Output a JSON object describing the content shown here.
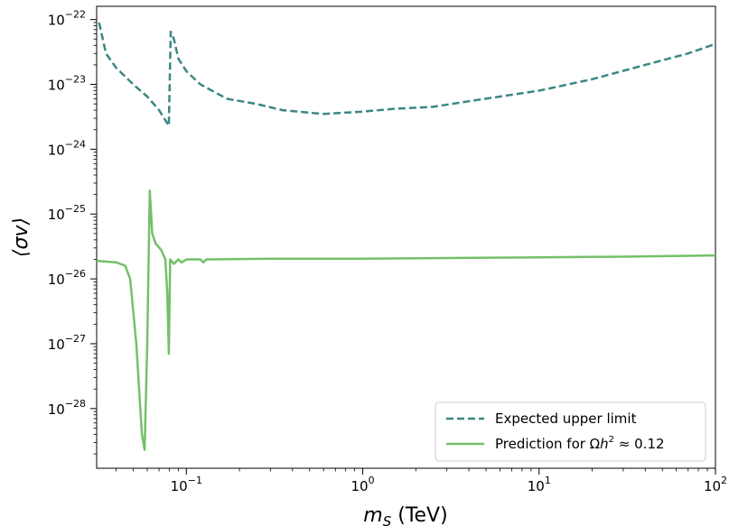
{
  "chart_data": {
    "type": "line",
    "xlabel_main": "m",
    "xlabel_sub": "S",
    "xlabel_unit": " (TeV)",
    "ylabel": "⟨σv⟩",
    "xscale": "log",
    "yscale": "log",
    "xlim": [
      0.031,
      100
    ],
    "ylim": [
      1.2e-29,
      1.6e-22
    ],
    "x_ticks": [
      {
        "value": 0.1,
        "base": "10",
        "exp": "−1"
      },
      {
        "value": 1,
        "base": "10",
        "exp": "0"
      },
      {
        "value": 10,
        "base": "10",
        "exp": "1"
      },
      {
        "value": 100,
        "base": "10",
        "exp": "2"
      }
    ],
    "y_ticks": [
      {
        "value": 1e-28,
        "base": "10",
        "exp": "−28"
      },
      {
        "value": 1e-27,
        "base": "10",
        "exp": "−27"
      },
      {
        "value": 1e-26,
        "base": "10",
        "exp": "−26"
      },
      {
        "value": 1e-25,
        "base": "10",
        "exp": "−25"
      },
      {
        "value": 1e-24,
        "base": "10",
        "exp": "−24"
      },
      {
        "value": 1e-23,
        "base": "10",
        "exp": "−23"
      },
      {
        "value": 1e-22,
        "base": "10",
        "exp": "−22"
      }
    ],
    "grid": false,
    "legend_position": "lower-right",
    "series": [
      {
        "name": "Expected upper limit",
        "color": "#3a8783",
        "style": "dashed",
        "points": [
          [
            0.032,
            9e-23
          ],
          [
            0.035,
            3e-23
          ],
          [
            0.04,
            1.8e-23
          ],
          [
            0.05,
            1e-23
          ],
          [
            0.06,
            6.5e-24
          ],
          [
            0.07,
            4e-24
          ],
          [
            0.0795,
            2.3e-24
          ],
          [
            0.0815,
            6.5e-23
          ],
          [
            0.085,
            5e-23
          ],
          [
            0.09,
            2.5e-23
          ],
          [
            0.1,
            1.6e-23
          ],
          [
            0.12,
            1e-23
          ],
          [
            0.17,
            6e-24
          ],
          [
            0.25,
            5e-24
          ],
          [
            0.35,
            4e-24
          ],
          [
            0.6,
            3.5e-24
          ],
          [
            1.0,
            3.8e-24
          ],
          [
            1.5,
            4.2e-24
          ],
          [
            2.5,
            4.5e-24
          ],
          [
            4.0,
            5.5e-24
          ],
          [
            6.0,
            6.5e-24
          ],
          [
            10.0,
            8e-24
          ],
          [
            20.0,
            1.2e-23
          ],
          [
            40.0,
            2e-23
          ],
          [
            70.0,
            3e-23
          ],
          [
            100.0,
            4.2e-23
          ]
        ]
      },
      {
        "name": "Prediction for Ωh² ≈ 0.12",
        "legend_prefix": "Prediction for Ω",
        "legend_h": "h",
        "legend_sup": "2",
        "legend_suffix": " ≈ 0.12",
        "color": "#74c069",
        "style": "solid",
        "points": [
          [
            0.031,
            1.9e-26
          ],
          [
            0.04,
            1.8e-26
          ],
          [
            0.045,
            1.6e-26
          ],
          [
            0.048,
            1e-26
          ],
          [
            0.052,
            1e-27
          ],
          [
            0.056,
            4e-29
          ],
          [
            0.058,
            2.3e-29
          ],
          [
            0.06,
            1e-27
          ],
          [
            0.062,
            2.3e-25
          ],
          [
            0.064,
            5e-26
          ],
          [
            0.067,
            3.5e-26
          ],
          [
            0.072,
            2.8e-26
          ],
          [
            0.076,
            2e-26
          ],
          [
            0.078,
            6e-27
          ],
          [
            0.0795,
            7e-28
          ],
          [
            0.081,
            2e-26
          ],
          [
            0.085,
            1.7e-26
          ],
          [
            0.09,
            2e-26
          ],
          [
            0.094,
            1.8e-26
          ],
          [
            0.1,
            2e-26
          ],
          [
            0.12,
            2e-26
          ],
          [
            0.125,
            1.8e-26
          ],
          [
            0.13,
            2e-26
          ],
          [
            0.3,
            2.05e-26
          ],
          [
            1.0,
            2.05e-26
          ],
          [
            3.0,
            2.1e-26
          ],
          [
            10.0,
            2.15e-26
          ],
          [
            30.0,
            2.2e-26
          ],
          [
            100.0,
            2.3e-26
          ]
        ]
      }
    ]
  }
}
